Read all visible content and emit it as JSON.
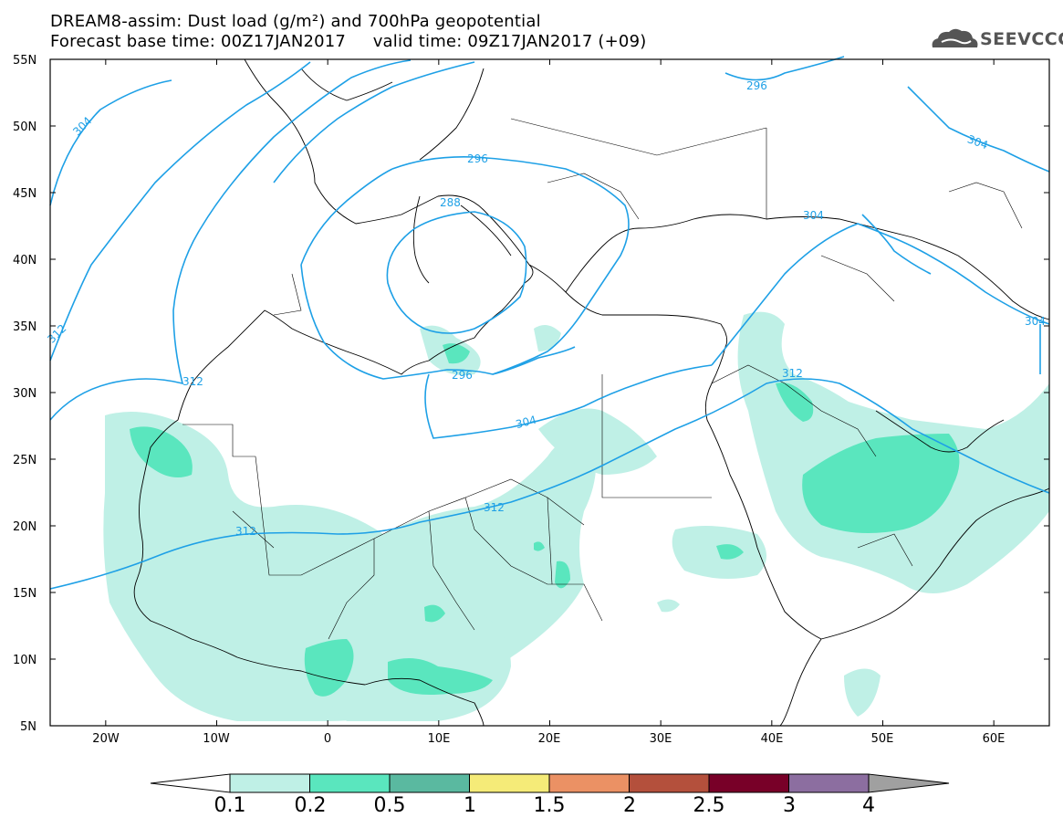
{
  "title": {
    "line1": "DREAM8-assim: Dust load (g/m²) and 700hPa geopotential",
    "line2": "Forecast base time: 00Z17JAN2017     valid time: 09Z17JAN2017 (+09)"
  },
  "logo": {
    "text": "SEEVCCC",
    "icon": "cloud-logo-icon"
  },
  "axes": {
    "lat_labels": [
      "55N",
      "50N",
      "45N",
      "40N",
      "35N",
      "30N",
      "25N",
      "20N",
      "15N",
      "10N",
      "5N"
    ],
    "lon_labels": [
      "20W",
      "10W",
      "0",
      "10E",
      "20E",
      "30E",
      "40E",
      "50E",
      "60E"
    ],
    "lat_range": [
      5,
      55
    ],
    "lon_range": [
      -25,
      65
    ]
  },
  "contours": {
    "color": "#1ea0e6",
    "labels": [
      "296",
      "304",
      "296",
      "288",
      "304",
      "312",
      "304",
      "296",
      "312",
      "304",
      "312",
      "312",
      "304"
    ]
  },
  "colorbar": {
    "labels": [
      "0.1",
      "0.2",
      "0.5",
      "1",
      "1.5",
      "2",
      "2.5",
      "3",
      "4"
    ],
    "colors": [
      "#bff0e6",
      "#5ae6be",
      "#5ab9a0",
      "#f5eb78",
      "#eb9164",
      "#b4503c",
      "#780028",
      "#8c6ea0",
      "#a0a0a0"
    ]
  },
  "dust_colors": {
    "light": "#bff0e6",
    "medium": "#5ae6be"
  }
}
